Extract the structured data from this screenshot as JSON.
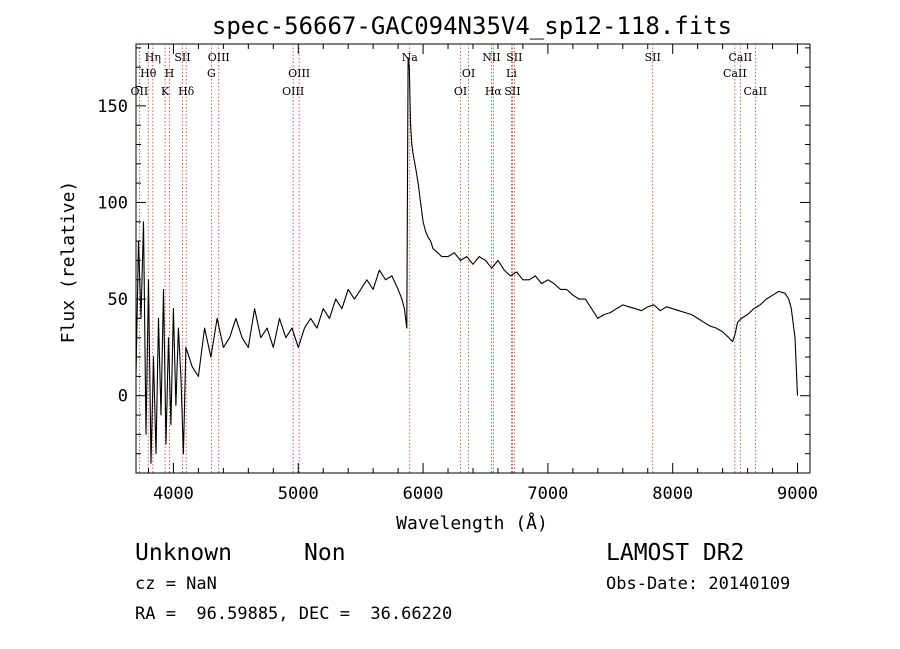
{
  "chart_data": {
    "type": "line",
    "title": "spec-56667-GAC094N35V4_sp12-118.fits",
    "xlabel": "Wavelength (Å)",
    "ylabel": "Flux (relative)",
    "xlim": [
      3700,
      9100
    ],
    "ylim": [
      -40,
      182
    ],
    "xticks": [
      4000,
      5000,
      6000,
      7000,
      8000,
      9000
    ],
    "yticks": [
      0,
      50,
      100,
      150
    ],
    "xtick_labels": [
      "4000",
      "5000",
      "6000",
      "7000",
      "8000",
      "9000"
    ],
    "ytick_labels": [
      "0",
      "50",
      "100",
      "150"
    ],
    "grid": false,
    "series": [
      {
        "x": [
          3700,
          3720,
          3740,
          3760,
          3780,
          3800,
          3820,
          3840,
          3860,
          3880,
          3900,
          3920,
          3940,
          3960,
          3980,
          4000,
          4020,
          4040,
          4060,
          4080,
          4100,
          4150,
          4200,
          4250,
          4300,
          4350,
          4400,
          4450,
          4500,
          4550,
          4600,
          4650,
          4700,
          4750,
          4800,
          4850,
          4900,
          4950,
          5000,
          5050,
          5100,
          5150,
          5200,
          5250,
          5300,
          5350,
          5400,
          5450,
          5500,
          5550,
          5600,
          5650,
          5700,
          5750,
          5800,
          5830,
          5850,
          5870,
          5880,
          5890,
          5893,
          5900,
          5910,
          5920,
          5940,
          5960,
          5980,
          6000,
          6020,
          6040,
          6060,
          6080,
          6100,
          6150,
          6200,
          6250,
          6300,
          6350,
          6400,
          6450,
          6500,
          6550,
          6600,
          6650,
          6700,
          6750,
          6800,
          6850,
          6900,
          6950,
          7000,
          7050,
          7100,
          7150,
          7200,
          7250,
          7300,
          7350,
          7400,
          7450,
          7500,
          7550,
          7600,
          7650,
          7700,
          7750,
          7800,
          7850,
          7900,
          7950,
          8000,
          8050,
          8100,
          8150,
          8200,
          8250,
          8300,
          8350,
          8400,
          8450,
          8480,
          8500,
          8520,
          8550,
          8600,
          8650,
          8700,
          8750,
          8800,
          8850,
          8900,
          8930,
          8950,
          8980,
          9000
        ],
        "y": [
          10,
          80,
          40,
          90,
          -20,
          60,
          -35,
          20,
          -30,
          40,
          -10,
          55,
          -25,
          30,
          -15,
          45,
          -5,
          35,
          10,
          -30,
          25,
          15,
          10,
          35,
          20,
          40,
          25,
          30,
          40,
          30,
          25,
          45,
          30,
          35,
          25,
          40,
          30,
          35,
          25,
          35,
          40,
          35,
          45,
          40,
          50,
          45,
          55,
          50,
          55,
          60,
          55,
          65,
          60,
          62,
          55,
          50,
          45,
          35,
          175,
          170,
          160,
          140,
          130,
          125,
          118,
          110,
          100,
          90,
          85,
          82,
          80,
          76,
          75,
          72,
          72,
          74,
          70,
          72,
          68,
          72,
          70,
          66,
          70,
          65,
          62,
          64,
          60,
          60,
          62,
          58,
          60,
          58,
          55,
          55,
          52,
          50,
          50,
          45,
          40,
          42,
          43,
          45,
          47,
          46,
          45,
          44,
          46,
          47,
          44,
          46,
          45,
          44,
          43,
          42,
          40,
          38,
          36,
          35,
          33,
          30,
          28,
          32,
          38,
          40,
          42,
          45,
          47,
          50,
          52,
          54,
          53,
          50,
          45,
          30,
          0
        ]
      }
    ],
    "lines": [
      {
        "x": 3727,
        "label": "OII",
        "row": 3
      },
      {
        "x": 3798,
        "label": "Hθ",
        "row": 2
      },
      {
        "x": 3835,
        "label": "Hη",
        "row": 1
      },
      {
        "x": 3933,
        "label": "K",
        "row": 3
      },
      {
        "x": 3968,
        "label": "H",
        "row": 2
      },
      {
        "x": 4072,
        "label": "SII",
        "row": 1
      },
      {
        "x": 4102,
        "label": "Hδ",
        "row": 3
      },
      {
        "x": 4304,
        "label": "G",
        "row": 2
      },
      {
        "x": 4363,
        "label": "OIII",
        "row": 1
      },
      {
        "x": 4959,
        "label": "OIII",
        "row": 3
      },
      {
        "x": 5007,
        "label": "OIII",
        "row": 2
      },
      {
        "x": 5893,
        "label": "Na",
        "row": 1
      },
      {
        "x": 6300,
        "label": "OI",
        "row": 3
      },
      {
        "x": 6364,
        "label": "OI",
        "row": 2
      },
      {
        "x": 6548,
        "label": "NII",
        "row": 1
      },
      {
        "x": 6563,
        "label": "Hα",
        "row": 3
      },
      {
        "x": 6708,
        "label": "Li",
        "row": 2
      },
      {
        "x": 6716,
        "label": "SII",
        "row": 3
      },
      {
        "x": 6731,
        "label": "SII",
        "row": 1
      },
      {
        "x": 7840,
        "label": "SII",
        "row": 1
      },
      {
        "x": 8498,
        "label": "CaII",
        "row": 2
      },
      {
        "x": 8542,
        "label": "CaII",
        "row": 1
      },
      {
        "x": 8662,
        "label": "CaII",
        "row": 3
      }
    ]
  },
  "footer": {
    "class_label": "Unknown",
    "subclass_label": "Non",
    "survey": "LAMOST DR2",
    "redshift": "cz = NaN",
    "obs_date": "Obs-Date: 20140109",
    "coords": "RA =  96.59885, DEC =  36.66220"
  }
}
